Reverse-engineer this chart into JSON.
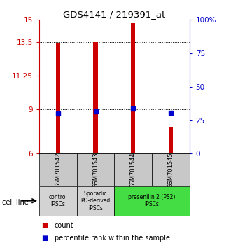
{
  "title": "GDS4141 / 219391_at",
  "samples": [
    "GSM701542",
    "GSM701543",
    "GSM701544",
    "GSM701545"
  ],
  "bar_tops": [
    13.4,
    13.5,
    14.8,
    7.8
  ],
  "bar_bottoms": [
    6.0,
    6.0,
    6.0,
    6.0
  ],
  "percentile_values": [
    8.7,
    8.85,
    9.05,
    8.75
  ],
  "ylim_left": [
    6,
    15
  ],
  "ylim_right": [
    0,
    100
  ],
  "yticks_left": [
    6,
    9,
    11.25,
    13.5,
    15
  ],
  "ytick_labels_left": [
    "6",
    "9",
    "11.25",
    "13.5",
    "15"
  ],
  "yticks_right_pct": [
    0,
    25,
    50,
    75,
    100
  ],
  "ytick_labels_right": [
    "0",
    "25",
    "50",
    "75",
    "100%"
  ],
  "bar_color": "#cc0000",
  "blue_color": "#0000cc",
  "grid_dotted_values": [
    9,
    11.25,
    13.5
  ],
  "category_groups": [
    {
      "label": "control\nIPSCs",
      "start": 0,
      "end": 1,
      "color": "#d3d3d3"
    },
    {
      "label": "Sporadic\nPD-derived\niPSCs",
      "start": 1,
      "end": 2,
      "color": "#d3d3d3"
    },
    {
      "label": "presenilin 2 (PS2)\niPSCs",
      "start": 2,
      "end": 4,
      "color": "#44dd44"
    }
  ],
  "sample_box_color": "#c8c8c8",
  "legend_count_color": "#cc0000",
  "legend_percentile_color": "#0000cc",
  "cell_line_label": "cell line",
  "left_axis_color": "#cc0000",
  "right_axis_color": "#0000cc",
  "bar_width": 0.12,
  "x_positions": [
    0.5,
    1.5,
    2.5,
    3.5
  ]
}
